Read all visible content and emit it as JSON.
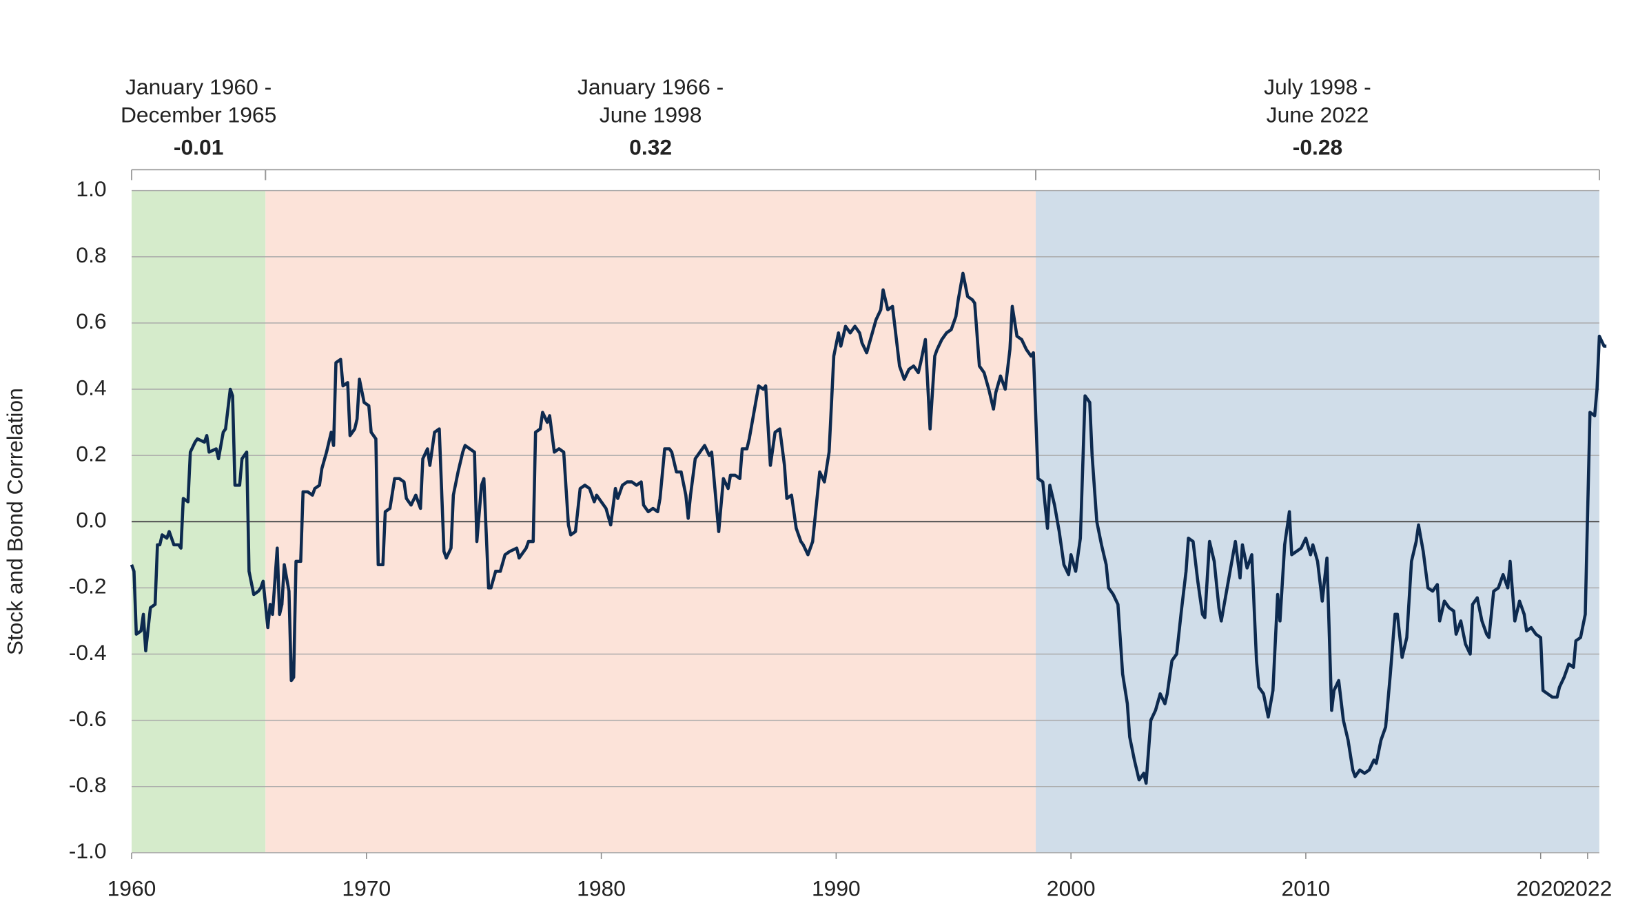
{
  "chart_data": {
    "type": "line",
    "y_label": "Stock and Bond Correlation",
    "color": "#0d2a4f",
    "grid": true,
    "xlim": [
      1960,
      2022.9
    ],
    "ylim": [
      -1,
      1
    ],
    "xticks": [
      1960,
      1970,
      1980,
      1990,
      2000,
      2010,
      2020,
      2022
    ],
    "yticks": [
      {
        "value": 1,
        "label": "1.0"
      },
      0.8,
      0.6,
      0.4,
      0.2,
      {
        "value": 0,
        "label": "0.0"
      },
      -0.2,
      -0.4,
      -0.6,
      -0.8,
      {
        "value": -1,
        "label": "-1.0"
      }
    ],
    "periods": [
      {
        "label": [
          "January 1960 -",
          "December 1965"
        ],
        "correlation": -0.01,
        "start": 1960,
        "end": 1965.7,
        "color": "#d5ebcb"
      },
      {
        "label": [
          "January 1966 -",
          "June 1998"
        ],
        "correlation": 0.32,
        "start": 1965.7,
        "end": 1998.5,
        "color": "#fce3d9"
      },
      {
        "label": [
          "July 1998 -",
          "June 2022"
        ],
        "correlation": -0.28,
        "start": 1998.5,
        "end": 2022.5,
        "color": "#d0dde9"
      }
    ],
    "x": [
      1960.0,
      1960.1,
      1960.2,
      1960.4,
      1960.5,
      1960.6,
      1960.8,
      1961.0,
      1961.1,
      1961.2,
      1961.3,
      1961.5,
      1961.6,
      1961.8,
      1962.0,
      1962.1,
      1962.2,
      1962.4,
      1962.5,
      1962.7,
      1962.8,
      1963.1,
      1963.2,
      1963.3,
      1963.6,
      1963.7,
      1963.9,
      1964.0,
      1964.2,
      1964.3,
      1964.4,
      1964.6,
      1964.7,
      1964.8,
      1964.9,
      1965.0,
      1965.2,
      1965.4,
      1965.5,
      1965.6,
      1965.8,
      1965.9,
      1966.0,
      1966.2,
      1966.3,
      1966.4,
      1966.5,
      1966.7,
      1966.8,
      1966.9,
      1967.0,
      1967.2,
      1967.3,
      1967.5,
      1967.7,
      1967.8,
      1968.0,
      1968.1,
      1968.3,
      1968.5,
      1968.6,
      1968.7,
      1968.9,
      1969.0,
      1969.2,
      1969.3,
      1969.5,
      1969.6,
      1969.7,
      1969.9,
      1970.1,
      1970.2,
      1970.4,
      1970.5,
      1970.7,
      1970.8,
      1971.0,
      1971.2,
      1971.4,
      1971.6,
      1971.7,
      1971.9,
      1972.1,
      1972.3,
      1972.4,
      1972.6,
      1972.7,
      1972.9,
      1973.1,
      1973.3,
      1973.4,
      1973.6,
      1973.7,
      1973.9,
      1974.1,
      1974.2,
      1974.4,
      1974.6,
      1974.7,
      1974.9,
      1975.0,
      1975.2,
      1975.3,
      1975.5,
      1975.7,
      1975.9,
      1976.1,
      1976.4,
      1976.5,
      1976.8,
      1976.9,
      1977.1,
      1977.2,
      1977.4,
      1977.5,
      1977.7,
      1977.8,
      1978.0,
      1978.2,
      1978.4,
      1978.6,
      1978.7,
      1978.9,
      1979.1,
      1979.3,
      1979.5,
      1979.7,
      1979.8,
      1980.0,
      1980.2,
      1980.4,
      1980.6,
      1980.7,
      1980.9,
      1981.1,
      1981.3,
      1981.5,
      1981.7,
      1981.8,
      1982.0,
      1982.2,
      1982.4,
      1982.5,
      1982.7,
      1982.9,
      1983.0,
      1983.2,
      1983.4,
      1983.6,
      1983.7,
      1983.8,
      1984.0,
      1984.2,
      1984.4,
      1984.6,
      1984.7,
      1984.9,
      1985.0,
      1985.2,
      1985.4,
      1985.5,
      1985.7,
      1985.9,
      1986.0,
      1986.2,
      1986.3,
      1986.5,
      1986.7,
      1986.9,
      1987.0,
      1987.2,
      1987.4,
      1987.6,
      1987.8,
      1987.9,
      1988.1,
      1988.3,
      1988.5,
      1988.6,
      1988.8,
      1989.0,
      1989.2,
      1989.3,
      1989.5,
      1989.7,
      1989.9,
      1990.1,
      1990.2,
      1990.4,
      1990.6,
      1990.8,
      1991.0,
      1991.1,
      1991.3,
      1991.5,
      1991.7,
      1991.9,
      1992.0,
      1992.2,
      1992.4,
      1992.6,
      1992.7,
      1992.9,
      1993.1,
      1993.3,
      1993.5,
      1993.6,
      1993.8,
      1994.0,
      1994.2,
      1994.3,
      1994.5,
      1994.7,
      1994.9,
      1995.1,
      1995.2,
      1995.4,
      1995.6,
      1995.8,
      1995.9,
      1996.1,
      1996.3,
      1996.5,
      1996.7,
      1996.8,
      1997.0,
      1997.2,
      1997.4,
      1997.5,
      1997.7,
      1997.9,
      1998.1,
      1998.3,
      1998.4,
      1998.6,
      1998.8,
      1999.0,
      1999.1,
      1999.3,
      1999.5,
      1999.7,
      1999.9,
      2000.0,
      2000.2,
      2000.4,
      2000.6,
      2000.8,
      2000.9,
      2001.1,
      2001.3,
      2001.5,
      2001.6,
      2001.8,
      2002.0,
      2002.2,
      2002.4,
      2002.5,
      2002.7,
      2002.9,
      2003.1,
      2003.2,
      2003.4,
      2003.6,
      2003.8,
      2004.0,
      2004.1,
      2004.3,
      2004.5,
      2004.7,
      2004.9,
      2005.0,
      2005.2,
      2005.4,
      2005.6,
      2005.7,
      2005.9,
      2006.1,
      2006.3,
      2006.4,
      2006.6,
      2006.8,
      2007.0,
      2007.2,
      2007.3,
      2007.5,
      2007.7,
      2007.9,
      2008.0,
      2008.2,
      2008.4,
      2008.6,
      2008.8,
      2008.9,
      2009.1,
      2009.3,
      2009.4,
      2009.6,
      2009.8,
      2010.0,
      2010.2,
      2010.3,
      2010.5,
      2010.7,
      2010.9,
      2011.1,
      2011.2,
      2011.4,
      2011.6,
      2011.8,
      2012.0,
      2012.1,
      2012.3,
      2012.5,
      2012.7,
      2012.9,
      2013.0,
      2013.2,
      2013.4,
      2013.6,
      2013.8,
      2013.9,
      2014.1,
      2014.3,
      2014.5,
      2014.7,
      2014.8,
      2015.0,
      2015.2,
      2015.4,
      2015.6,
      2015.7,
      2015.9,
      2016.1,
      2016.3,
      2016.4,
      2016.6,
      2016.8,
      2017.0,
      2017.1,
      2017.3,
      2017.5,
      2017.7,
      2017.8,
      2018.0,
      2018.2,
      2018.4,
      2018.6,
      2018.7,
      2018.9,
      2019.1,
      2019.3,
      2019.4,
      2019.6,
      2019.8,
      2020.0,
      2020.1,
      2020.3,
      2020.5,
      2020.7,
      2020.8,
      2021.0,
      2021.2,
      2021.4,
      2021.5,
      2021.7,
      2021.9,
      2022.1,
      2022.3,
      2022.4,
      2022.5,
      2022.7,
      2022.8
    ],
    "values": [
      -0.13,
      -0.15,
      -0.34,
      -0.33,
      -0.28,
      -0.39,
      -0.26,
      -0.25,
      -0.07,
      -0.07,
      -0.04,
      -0.05,
      -0.03,
      -0.07,
      -0.07,
      -0.08,
      0.07,
      0.06,
      0.21,
      0.24,
      0.25,
      0.24,
      0.26,
      0.21,
      0.22,
      0.19,
      0.27,
      0.28,
      0.4,
      0.38,
      0.11,
      0.11,
      0.19,
      0.2,
      0.21,
      -0.15,
      -0.22,
      -0.21,
      -0.2,
      -0.18,
      -0.32,
      -0.25,
      -0.28,
      -0.08,
      -0.28,
      -0.25,
      -0.13,
      -0.21,
      -0.48,
      -0.47,
      -0.12,
      -0.12,
      0.09,
      0.09,
      0.08,
      0.1,
      0.11,
      0.16,
      0.21,
      0.27,
      0.23,
      0.48,
      0.49,
      0.41,
      0.42,
      0.26,
      0.28,
      0.31,
      0.43,
      0.36,
      0.35,
      0.27,
      0.25,
      -0.13,
      -0.13,
      0.03,
      0.04,
      0.13,
      0.13,
      0.12,
      0.07,
      0.05,
      0.08,
      0.04,
      0.19,
      0.22,
      0.17,
      0.27,
      0.28,
      -0.09,
      -0.11,
      -0.08,
      0.08,
      0.15,
      0.21,
      0.23,
      0.22,
      0.21,
      -0.06,
      0.11,
      0.13,
      -0.2,
      -0.2,
      -0.15,
      -0.15,
      -0.1,
      -0.09,
      -0.08,
      -0.11,
      -0.08,
      -0.06,
      -0.06,
      0.27,
      0.28,
      0.33,
      0.3,
      0.32,
      0.21,
      0.22,
      0.21,
      -0.01,
      -0.04,
      -0.03,
      0.1,
      0.11,
      0.1,
      0.06,
      0.08,
      0.06,
      0.04,
      -0.01,
      0.1,
      0.07,
      0.11,
      0.12,
      0.12,
      0.11,
      0.12,
      0.05,
      0.03,
      0.04,
      0.03,
      0.07,
      0.22,
      0.22,
      0.21,
      0.15,
      0.15,
      0.08,
      0.01,
      0.08,
      0.19,
      0.21,
      0.23,
      0.2,
      0.21,
      0.05,
      -0.03,
      0.13,
      0.1,
      0.14,
      0.14,
      0.13,
      0.22,
      0.22,
      0.25,
      0.33,
      0.41,
      0.4,
      0.41,
      0.17,
      0.27,
      0.28,
      0.17,
      0.07,
      0.08,
      -0.02,
      -0.06,
      -0.07,
      -0.1,
      -0.06,
      0.08,
      0.15,
      0.12,
      0.21,
      0.5,
      0.57,
      0.53,
      0.59,
      0.57,
      0.59,
      0.57,
      0.54,
      0.51,
      0.56,
      0.61,
      0.64,
      0.7,
      0.64,
      0.65,
      0.53,
      0.47,
      0.43,
      0.46,
      0.47,
      0.45,
      0.48,
      0.55,
      0.28,
      0.5,
      0.52,
      0.55,
      0.57,
      0.58,
      0.62,
      0.67,
      0.75,
      0.68,
      0.67,
      0.66,
      0.47,
      0.45,
      0.4,
      0.34,
      0.39,
      0.44,
      0.4,
      0.52,
      0.65,
      0.56,
      0.55,
      0.52,
      0.5,
      0.51,
      0.13,
      0.12,
      -0.02,
      0.11,
      0.05,
      -0.03,
      -0.13,
      -0.16,
      -0.1,
      -0.15,
      -0.05,
      0.38,
      0.36,
      0.2,
      0.0,
      -0.07,
      -0.13,
      -0.2,
      -0.22,
      -0.25,
      -0.46,
      -0.55,
      -0.65,
      -0.72,
      -0.78,
      -0.76,
      -0.79,
      -0.6,
      -0.57,
      -0.52,
      -0.55,
      -0.52,
      -0.42,
      -0.4,
      -0.27,
      -0.15,
      -0.05,
      -0.06,
      -0.18,
      -0.28,
      -0.29,
      -0.06,
      -0.12,
      -0.26,
      -0.3,
      -0.22,
      -0.14,
      -0.06,
      -0.17,
      -0.07,
      -0.14,
      -0.1,
      -0.42,
      -0.5,
      -0.52,
      -0.59,
      -0.51,
      -0.22,
      -0.3,
      -0.07,
      0.03,
      -0.1,
      -0.09,
      -0.08,
      -0.05,
      -0.1,
      -0.07,
      -0.12,
      -0.24,
      -0.11,
      -0.57,
      -0.51,
      -0.48,
      -0.6,
      -0.66,
      -0.75,
      -0.77,
      -0.75,
      -0.76,
      -0.75,
      -0.72,
      -0.73,
      -0.66,
      -0.62,
      -0.46,
      -0.28,
      -0.28,
      -0.41,
      -0.35,
      -0.12,
      -0.06,
      -0.01,
      -0.09,
      -0.2,
      -0.21,
      -0.19,
      -0.3,
      -0.24,
      -0.26,
      -0.27,
      -0.34,
      -0.3,
      -0.37,
      -0.4,
      -0.25,
      -0.23,
      -0.3,
      -0.34,
      -0.35,
      -0.21,
      -0.2,
      -0.16,
      -0.2,
      -0.12,
      -0.3,
      -0.24,
      -0.28,
      -0.33,
      -0.32,
      -0.34,
      -0.35,
      -0.51,
      -0.52,
      -0.53,
      -0.53,
      -0.5,
      -0.47,
      -0.43,
      -0.44,
      -0.36,
      -0.35,
      -0.28,
      0.33,
      0.32,
      0.4,
      0.56,
      0.53,
      0.53
    ]
  }
}
